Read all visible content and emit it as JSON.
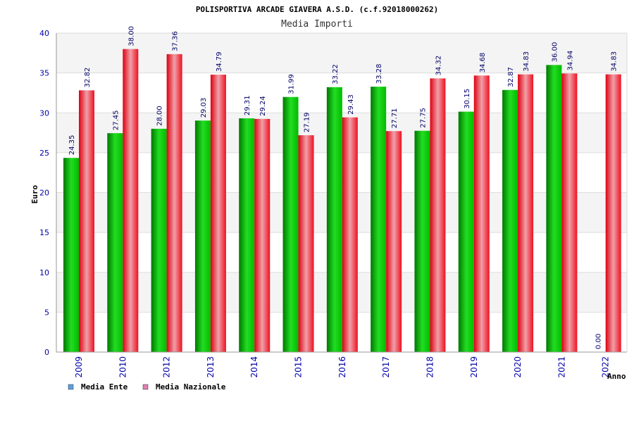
{
  "chart_data": {
    "type": "bar",
    "title": "POLISPORTIVA ARCADE GIAVERA A.S.D. (c.f.92018000262)",
    "subtitle": "Media Importi",
    "xlabel": "Anno",
    "ylabel": "Euro",
    "ylim": [
      0,
      40
    ],
    "yticks": [
      0,
      5,
      10,
      15,
      20,
      25,
      30,
      35,
      40
    ],
    "grid": true,
    "legend_position": "bottom-left",
    "categories": [
      "2009",
      "2010",
      "2012",
      "2013",
      "2014",
      "2015",
      "2016",
      "2017",
      "2018",
      "2019",
      "2020",
      "2021",
      "2022"
    ],
    "series": [
      {
        "name": "Media Ente",
        "color": "#00cc00",
        "legend_color": "#5fa0e0",
        "values": [
          24.35,
          27.45,
          28.0,
          29.03,
          29.31,
          31.99,
          33.22,
          33.28,
          27.75,
          30.15,
          32.87,
          36.0,
          0.0
        ],
        "labels": [
          "24.35",
          "27.45",
          "28.00",
          "29.03",
          "29.31",
          "31.99",
          "33.22",
          "33.28",
          "27.75",
          "30.15",
          "32.87",
          "36.00",
          "0.00"
        ]
      },
      {
        "name": "Media Nazionale",
        "color": "#ee1122",
        "legend_color": "#e080b0",
        "values": [
          32.82,
          38.0,
          37.36,
          34.79,
          29.24,
          27.19,
          29.43,
          27.71,
          34.32,
          34.68,
          34.83,
          34.94,
          34.83
        ],
        "labels": [
          "32.82",
          "38.00",
          "37.36",
          "34.79",
          "29.24",
          "27.19",
          "29.43",
          "27.71",
          "34.32",
          "34.68",
          "34.83",
          "34.94",
          "34.83"
        ]
      }
    ]
  }
}
